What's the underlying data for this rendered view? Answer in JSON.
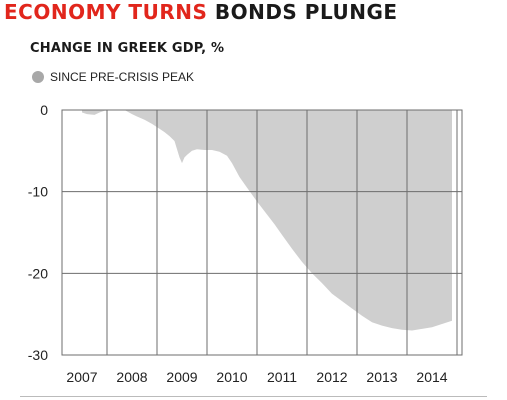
{
  "header": {
    "headline_part1": "ECONOMY TURNS",
    "headline_part2": "BONDS PLUNGE",
    "headline_color": "#e1261c"
  },
  "chart_data": {
    "type": "area",
    "title": "CHANGE IN GREEK GDP, %",
    "legend": [
      {
        "name": "SINCE PRE-CRISIS PEAK",
        "color": "#a8a8a8"
      }
    ],
    "xlabel": "",
    "ylabel": "",
    "x_ticks": [
      "2007",
      "2008",
      "2009",
      "2010",
      "2011",
      "2012",
      "2013",
      "2014"
    ],
    "y_ticks": [
      0,
      -10,
      -20,
      -30
    ],
    "ylim": [
      -30,
      0
    ],
    "xlim": [
      2006.6,
      2014.6
    ],
    "grid": true,
    "fill_color": "#cfcfcf",
    "series": [
      {
        "name": "SINCE PRE-CRISIS PEAK",
        "x": [
          2007.0,
          2007.1,
          2007.25,
          2007.35,
          2007.45,
          2007.6,
          2007.75,
          2007.85,
          2008.0,
          2008.1,
          2008.25,
          2008.4,
          2008.55,
          2008.65,
          2008.75,
          2008.85,
          2008.95,
          2009.0,
          2009.05,
          2009.1,
          2009.2,
          2009.3,
          2009.45,
          2009.6,
          2009.75,
          2009.9,
          2010.0,
          2010.15,
          2010.3,
          2010.5,
          2010.7,
          2010.85,
          2011.0,
          2011.2,
          2011.4,
          2011.6,
          2011.8,
          2012.0,
          2012.2,
          2012.4,
          2012.6,
          2012.8,
          2013.0,
          2013.2,
          2013.4,
          2013.6,
          2013.8,
          2014.0,
          2014.2,
          2014.4
        ],
        "values": [
          -0.3,
          -0.5,
          -0.6,
          -0.3,
          -0.1,
          0.0,
          0.0,
          0.0,
          -0.5,
          -0.8,
          -1.2,
          -1.7,
          -2.3,
          -2.7,
          -3.2,
          -3.8,
          -5.8,
          -6.5,
          -5.8,
          -5.5,
          -5.0,
          -4.8,
          -4.9,
          -4.9,
          -5.1,
          -5.6,
          -6.5,
          -8.2,
          -9.5,
          -11.2,
          -12.8,
          -14.0,
          -15.3,
          -17.0,
          -18.6,
          -20.0,
          -21.2,
          -22.5,
          -23.4,
          -24.3,
          -25.2,
          -26.0,
          -26.4,
          -26.7,
          -26.9,
          -27.0,
          -26.8,
          -26.6,
          -26.2,
          -25.8
        ]
      }
    ]
  }
}
